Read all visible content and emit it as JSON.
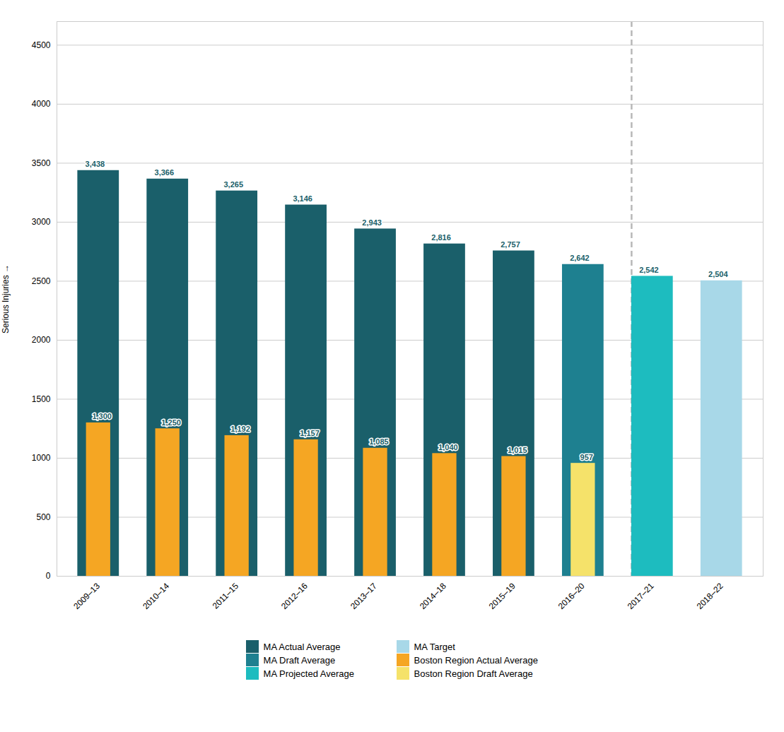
{
  "chart_data": {
    "type": "bar",
    "categories": [
      "2009–13",
      "2010–14",
      "2011–15",
      "2012–16",
      "2013–17",
      "2014–18",
      "2015–19",
      "2016–20",
      "2017–21",
      "2018–22"
    ],
    "series": [
      {
        "name": "MA Actual Average",
        "color": "#1a5f6a",
        "values": [
          3438,
          3366,
          3265,
          3146,
          2943,
          2816,
          2757,
          null,
          null,
          null
        ],
        "value_labels": [
          "3,438",
          "3,366",
          "3,265",
          "3,146",
          "2,943",
          "2,816",
          "2,757",
          null,
          null,
          null
        ]
      },
      {
        "name": "MA Draft Average",
        "color": "#1e8090",
        "values": [
          null,
          null,
          null,
          null,
          null,
          null,
          null,
          2642,
          null,
          null
        ],
        "value_labels": [
          null,
          null,
          null,
          null,
          null,
          null,
          null,
          "2,642",
          null,
          null
        ]
      },
      {
        "name": "MA Projected Average",
        "color": "#1dbcbf",
        "values": [
          null,
          null,
          null,
          null,
          null,
          null,
          null,
          null,
          2542,
          null
        ],
        "value_labels": [
          null,
          null,
          null,
          null,
          null,
          null,
          null,
          null,
          "2,542",
          null
        ]
      },
      {
        "name": "MA Target",
        "color": "#a8d8e8",
        "values": [
          null,
          null,
          null,
          null,
          null,
          null,
          null,
          null,
          null,
          2504
        ],
        "value_labels": [
          null,
          null,
          null,
          null,
          null,
          null,
          null,
          null,
          null,
          "2,504"
        ]
      },
      {
        "name": "Boston Region Actual Average",
        "color": "#f5a623",
        "values": [
          1300,
          1250,
          1192,
          1157,
          1085,
          1040,
          1015,
          null,
          null,
          null
        ],
        "value_labels": [
          "1,300",
          "1,250",
          "1,192",
          "1,157",
          "1,085",
          "1,040",
          "1,015",
          null,
          null,
          null
        ]
      },
      {
        "name": "Boston Region Draft Average",
        "color": "#f5e26a",
        "values": [
          null,
          null,
          null,
          null,
          null,
          null,
          null,
          957,
          null,
          null
        ],
        "value_labels": [
          null,
          null,
          null,
          null,
          null,
          null,
          null,
          "957",
          null,
          null
        ]
      }
    ],
    "ylabel": "Serious Injuries",
    "ylim": [
      0,
      4700
    ],
    "yticks": [
      0,
      500,
      1000,
      1500,
      2000,
      2500,
      3000,
      3500,
      4000,
      4500
    ],
    "grid": true,
    "legend": "bottom",
    "stacked": false,
    "data_labels": true
  }
}
